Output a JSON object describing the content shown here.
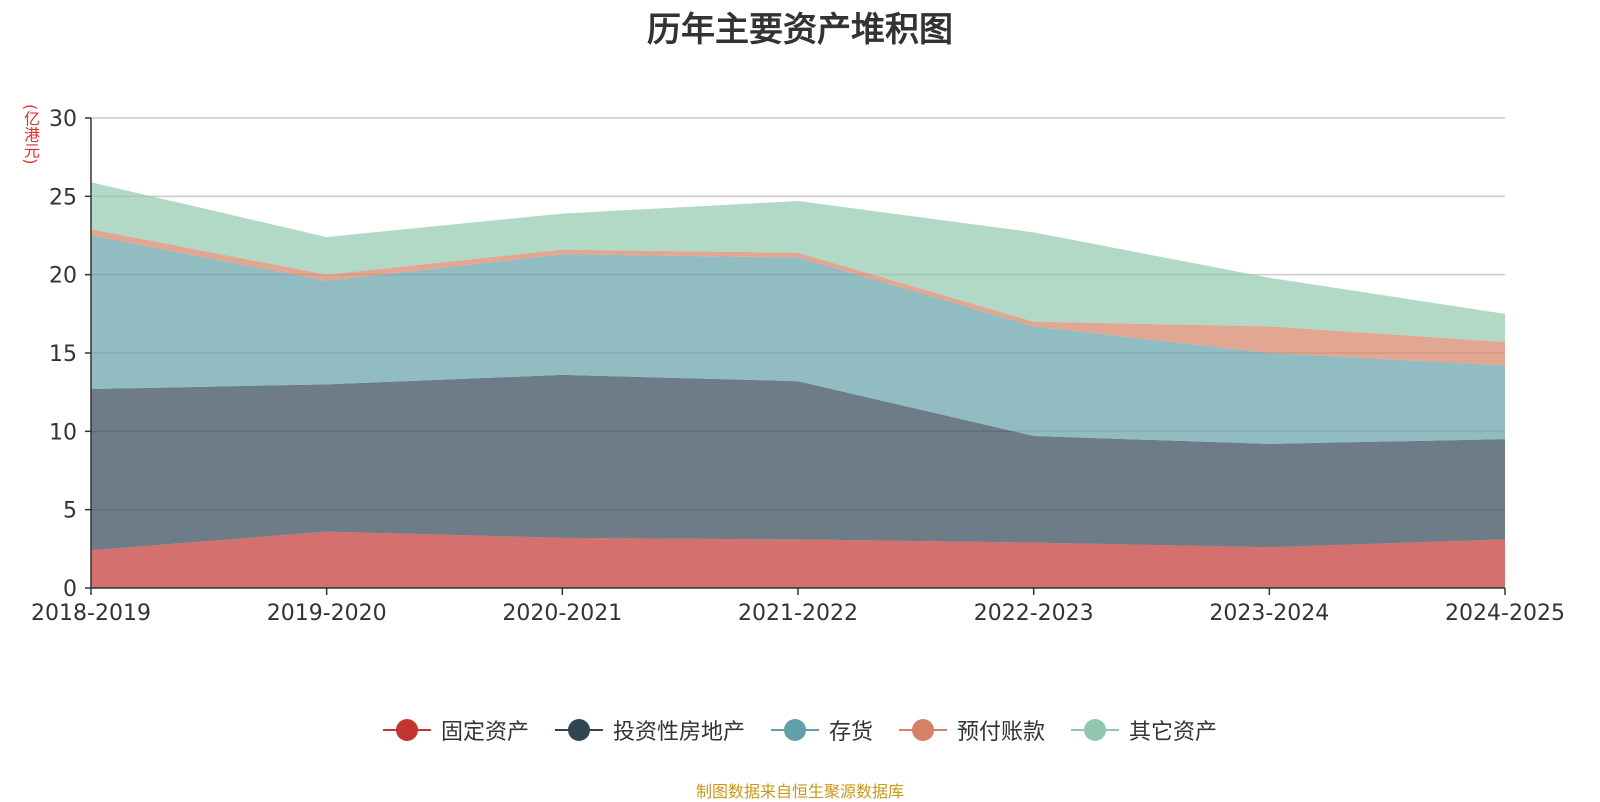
{
  "title": "历年主要资产堆积图",
  "source": "制图数据来自恒生聚源数据库",
  "chart_data": {
    "type": "area",
    "stacked": true,
    "title": "历年主要资产堆积图",
    "ylabel": "(亿港元)",
    "ylim": [
      0,
      30
    ],
    "yticks": [
      0,
      5,
      10,
      15,
      20,
      25,
      30
    ],
    "grid": true,
    "legend_position": "bottom",
    "categories": [
      "2018-2019",
      "2019-2020",
      "2020-2021",
      "2021-2022",
      "2022-2023",
      "2023-2024",
      "2024-2025"
    ],
    "series": [
      {
        "name": "固定资产",
        "color": "#c23531",
        "values": [
          2.4,
          3.6,
          3.2,
          3.1,
          2.9,
          2.6,
          3.1
        ]
      },
      {
        "name": "投资性房地产",
        "color": "#2f4554",
        "values": [
          10.3,
          9.4,
          10.4,
          10.1,
          6.8,
          6.6,
          6.4
        ]
      },
      {
        "name": "存货",
        "color": "#61a0a8",
        "values": [
          9.8,
          6.6,
          7.7,
          7.9,
          7.0,
          5.8,
          4.7
        ]
      },
      {
        "name": "预付账款",
        "color": "#d48265",
        "values": [
          0.4,
          0.4,
          0.3,
          0.3,
          0.3,
          1.7,
          1.5
        ]
      },
      {
        "name": "其它资产",
        "color": "#91c7ae",
        "values": [
          3.0,
          2.4,
          2.3,
          3.3,
          5.7,
          3.1,
          1.8
        ]
      }
    ]
  }
}
